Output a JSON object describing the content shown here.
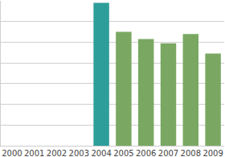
{
  "chart_data": {
    "type": "bar",
    "categories": [
      "2000",
      "2001",
      "2002",
      "2003",
      "2004",
      "2005",
      "2006",
      "2007",
      "2008",
      "2009"
    ],
    "values": [
      null,
      null,
      null,
      null,
      6.9,
      5.5,
      5.15,
      4.95,
      5.4,
      4.45
    ],
    "colors": [
      "#7aa862",
      "#7aa862",
      "#7aa862",
      "#7aa862",
      "#2e9e9a",
      "#7aa862",
      "#7aa862",
      "#7aa862",
      "#7aa862",
      "#7aa862"
    ],
    "ylim": [
      0,
      7
    ],
    "yticks": [
      0,
      1,
      2,
      3,
      4,
      5,
      6,
      7
    ],
    "grid": true,
    "tick_labels": "x"
  }
}
